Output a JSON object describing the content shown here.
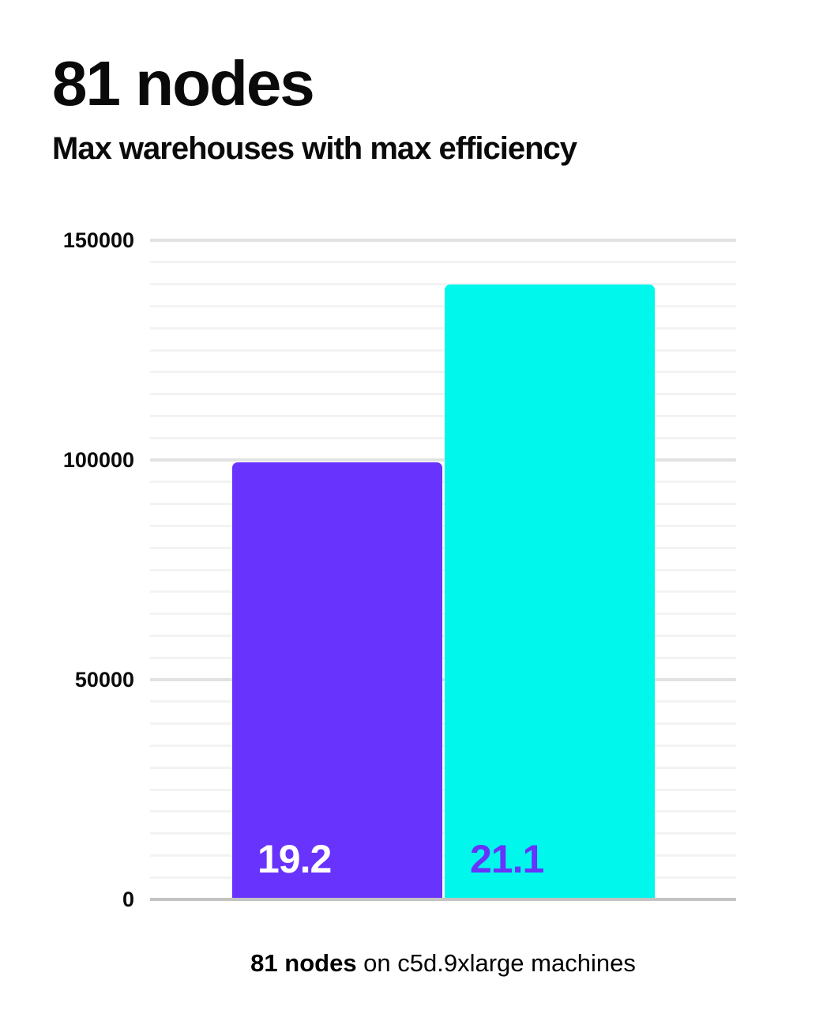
{
  "page": {
    "background": "#ffffff"
  },
  "header": {
    "title": "81 nodes",
    "subtitle": "Max warehouses with max efficiency"
  },
  "caption": {
    "bold": "81 nodes",
    "rest": " on c5d.9xlarge machines"
  },
  "chart_data": {
    "type": "bar",
    "title": "81 nodes",
    "subtitle": "Max warehouses with max efficiency",
    "categories": [
      "19.2",
      "21.1"
    ],
    "values": [
      99500,
      140000
    ],
    "bar_colors": [
      "#6733fd",
      "#00f8ec"
    ],
    "bar_label_colors": [
      "#ffffff",
      "#6733fd"
    ],
    "ylim": [
      0,
      150000
    ],
    "yticks": [
      0,
      50000,
      100000,
      150000
    ],
    "ytick_labels": [
      "0",
      "50000",
      "100000",
      "150000"
    ],
    "minor_grid_step": 5000,
    "major_grid_step": 50000,
    "grid": "on",
    "legend": "none",
    "xlabel": "81 nodes on c5d.9xlarge machines",
    "ylabel": "",
    "colors": {
      "grid_major": "#e2e2e2",
      "grid_minor": "#f3f3f3",
      "axis_line": "#c3c3c3",
      "text": "#0b0b0b"
    }
  }
}
